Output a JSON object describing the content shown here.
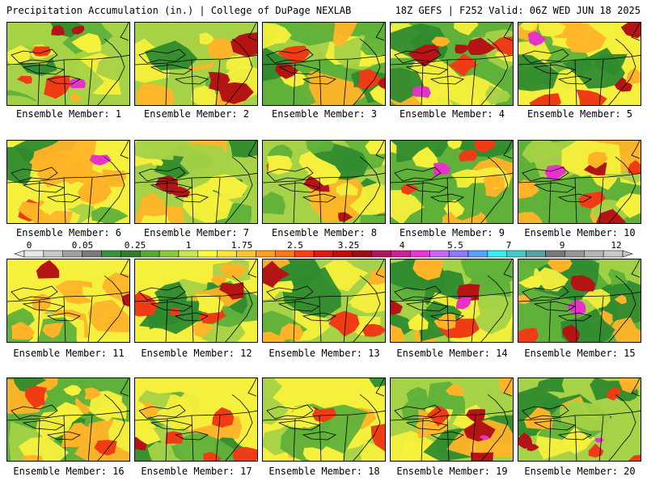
{
  "header": {
    "left": "Precipitation Accumulation (in.) | College of DuPage NEXLAB",
    "right": "18Z GEFS | F252 Valid: 06Z WED JUN 18 2025"
  },
  "members": [
    "Ensemble Member: 1",
    "Ensemble Member: 2",
    "Ensemble Member: 3",
    "Ensemble Member: 4",
    "Ensemble Member: 5",
    "Ensemble Member: 6",
    "Ensemble Member: 7",
    "Ensemble Member: 8",
    "Ensemble Member: 9",
    "Ensemble Member: 10",
    "Ensemble Member: 11",
    "Ensemble Member: 12",
    "Ensemble Member: 13",
    "Ensemble Member: 14",
    "Ensemble Member: 15",
    "Ensemble Member: 16",
    "Ensemble Member: 17",
    "Ensemble Member: 18",
    "Ensemble Member: 19",
    "Ensemble Member: 20"
  ],
  "colorbar": {
    "labels": [
      "0",
      "0.05",
      "0.25",
      "1",
      "1.75",
      "2.5",
      "3.25",
      "4",
      "5.5",
      "7",
      "9",
      "12"
    ],
    "colors": [
      "#e8e8e8",
      "#c8c8c8",
      "#a0a0a0",
      "#7a7a7a",
      "#3c8f3c",
      "#2f7d2f",
      "#55a832",
      "#8cc83c",
      "#c8e650",
      "#ffff3c",
      "#ffe632",
      "#ffc828",
      "#ff9f1e",
      "#ff7814",
      "#ff3c14",
      "#e61414",
      "#c80a0a",
      "#a00a14",
      "#b4145a",
      "#d21e96",
      "#f032d2",
      "#c864ff",
      "#8c78ff",
      "#5aa0ff",
      "#32f0f0",
      "#46c8c8",
      "#5aa0a0",
      "#787878",
      "#969696",
      "#b4b4b4",
      "#c8c8c8"
    ]
  },
  "scheme": {
    "green_dark": "#2e8b2e",
    "green": "#5fb13a",
    "yellow_green": "#a5d246",
    "yellow": "#f5f03c",
    "orange": "#ffb428",
    "red": "#f03c14",
    "dark_red": "#b41414",
    "magenta": "#e632c8",
    "border": "#000000"
  }
}
